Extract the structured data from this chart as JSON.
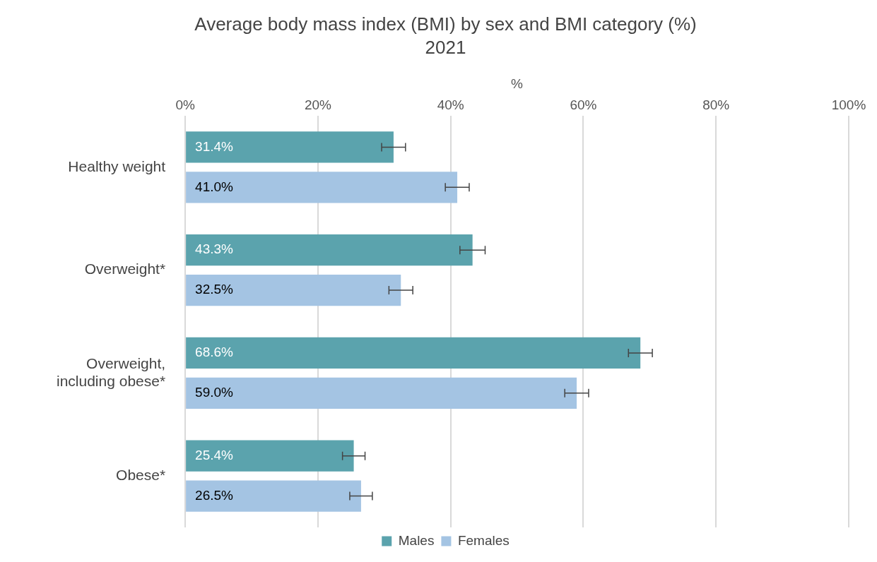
{
  "chart_data": {
    "type": "bar",
    "orientation": "horizontal",
    "title": "Average body mass index (BMI) by sex and BMI category (%)",
    "subtitle": "2021",
    "xlabel": "%",
    "categories": [
      "Healthy weight",
      "Overweight*",
      "Overweight, including obese*",
      "Obese*"
    ],
    "series": [
      {
        "name": "Males",
        "color": "#5ba3ad",
        "values": [
          31.4,
          43.3,
          68.6,
          25.4
        ],
        "value_labels": [
          "31.4%",
          "43.3%",
          "68.6%",
          "25.4%"
        ],
        "errors": [
          1.8,
          1.9,
          1.8,
          1.7
        ]
      },
      {
        "name": "Females",
        "color": "#a4c4e3",
        "values": [
          41.0,
          32.5,
          59.0,
          26.5
        ],
        "value_labels": [
          "41.0%",
          "32.5%",
          "59.0%",
          "26.5%"
        ],
        "errors": [
          1.8,
          1.8,
          1.8,
          1.7
        ]
      }
    ],
    "xlim": [
      0,
      100
    ],
    "xticks": [
      {
        "value": 0,
        "label": "0%"
      },
      {
        "value": 20,
        "label": "20%"
      },
      {
        "value": 40,
        "label": "40%"
      },
      {
        "value": 60,
        "label": "60%"
      },
      {
        "value": 80,
        "label": "80%"
      },
      {
        "value": 100,
        "label": "100%"
      }
    ],
    "grid": "x",
    "legend": "bottom"
  }
}
